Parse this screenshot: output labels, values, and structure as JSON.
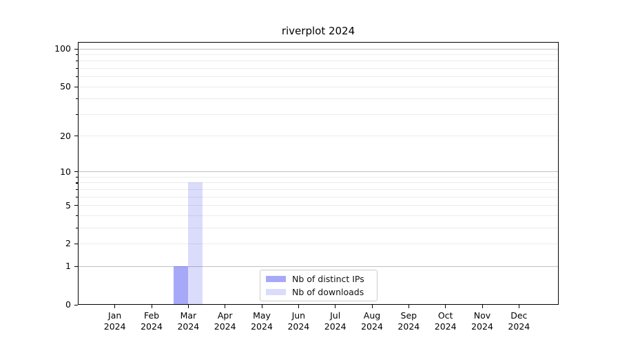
{
  "title": "riverplot 2024",
  "chart_data": {
    "type": "bar",
    "title": "riverplot 2024",
    "categories": [
      "Jan 2024",
      "Feb 2024",
      "Mar 2024",
      "Apr 2024",
      "May 2024",
      "Jun 2024",
      "Jul 2024",
      "Aug 2024",
      "Sep 2024",
      "Oct 2024",
      "Nov 2024",
      "Dec 2024"
    ],
    "series": [
      {
        "name": "Nb of distinct IPs",
        "color": "rgba(75,80,240,0.49)",
        "values": [
          0,
          0,
          1,
          0,
          0,
          0,
          0,
          0,
          0,
          0,
          0,
          0
        ]
      },
      {
        "name": "Nb of downloads",
        "color": "rgba(75,80,240,0.20)",
        "values": [
          0,
          0,
          8,
          0,
          0,
          0,
          0,
          0,
          0,
          0,
          0,
          0
        ]
      }
    ],
    "xlabel": "",
    "ylabel": "",
    "yscale": "log1p",
    "ylim": [
      0,
      112
    ],
    "yticks": [
      0,
      1,
      2,
      5,
      10,
      20,
      50,
      100
    ],
    "major_gridlines": [
      1,
      10,
      100
    ],
    "minor_gridlines": [
      2,
      3,
      4,
      5,
      6,
      7,
      8,
      9,
      20,
      30,
      40,
      50,
      60,
      70,
      80,
      90
    ],
    "grid": true,
    "legend_position": "lower center"
  },
  "colors": {
    "major_grid": "#c0c0c0",
    "minor_grid": "#ececec",
    "axis": "#000000",
    "text": "#000000",
    "legend_border": "#cccccc",
    "background": "#ffffff"
  }
}
